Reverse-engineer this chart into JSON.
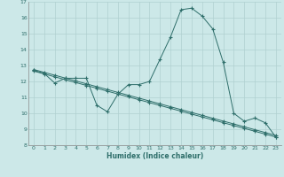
{
  "xlabel": "Humidex (Indice chaleur)",
  "background_color": "#cce8e8",
  "grid_color": "#b0d0d0",
  "line_color": "#2e6e6a",
  "xlim": [
    -0.5,
    23.5
  ],
  "ylim": [
    8,
    17
  ],
  "xticks": [
    0,
    1,
    2,
    3,
    4,
    5,
    6,
    7,
    8,
    9,
    10,
    11,
    12,
    13,
    14,
    15,
    16,
    17,
    18,
    19,
    20,
    21,
    22,
    23
  ],
  "yticks": [
    8,
    9,
    10,
    11,
    12,
    13,
    14,
    15,
    16,
    17
  ],
  "line1_x": [
    0,
    1,
    2,
    3,
    4,
    5,
    6,
    7,
    8,
    9,
    10,
    11,
    12,
    13,
    14,
    15,
    16,
    17,
    18,
    19,
    20,
    21,
    22,
    23
  ],
  "line1_y": [
    12.7,
    12.5,
    11.9,
    12.2,
    12.2,
    12.2,
    10.5,
    10.1,
    11.2,
    11.8,
    11.8,
    12.0,
    13.4,
    14.8,
    16.5,
    16.6,
    16.1,
    15.3,
    13.2,
    10.0,
    9.5,
    9.7,
    9.4,
    8.5
  ],
  "line2_x": [
    0,
    1,
    2,
    3,
    4,
    5,
    6,
    7,
    8,
    9,
    10,
    11,
    12,
    13,
    14,
    15,
    16,
    17,
    18,
    19,
    20,
    21,
    22,
    23
  ],
  "line2_y": [
    12.75,
    12.57,
    12.39,
    12.21,
    12.03,
    11.85,
    11.67,
    11.49,
    11.31,
    11.13,
    10.95,
    10.77,
    10.59,
    10.41,
    10.23,
    10.05,
    9.87,
    9.69,
    9.51,
    9.33,
    9.15,
    8.97,
    8.79,
    8.61
  ],
  "line3_x": [
    0,
    1,
    2,
    3,
    4,
    5,
    6,
    7,
    8,
    9,
    10,
    11,
    12,
    13,
    14,
    15,
    16,
    17,
    18,
    19,
    20,
    21,
    22,
    23
  ],
  "line3_y": [
    12.65,
    12.47,
    12.29,
    12.11,
    11.93,
    11.75,
    11.57,
    11.39,
    11.21,
    11.03,
    10.85,
    10.67,
    10.49,
    10.31,
    10.13,
    9.95,
    9.77,
    9.59,
    9.41,
    9.23,
    9.05,
    8.87,
    8.69,
    8.51
  ]
}
